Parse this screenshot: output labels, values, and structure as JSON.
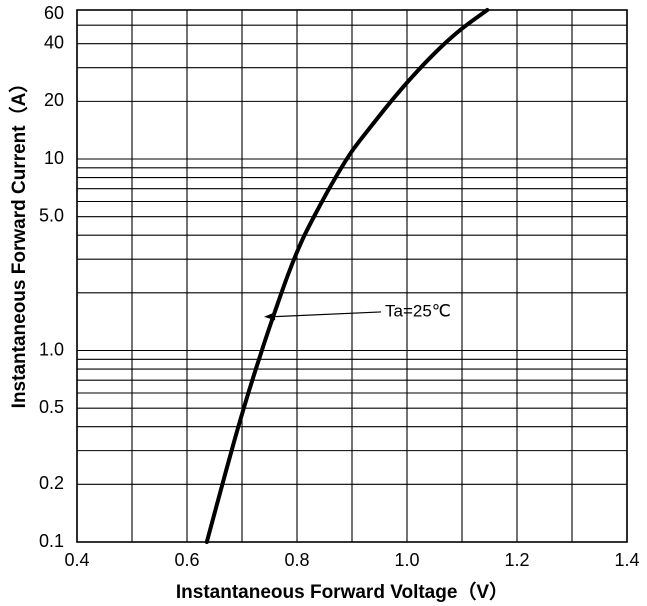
{
  "chart_data": {
    "type": "line",
    "title": "",
    "xlabel": "Instantaneous Forward Voltage（V）",
    "ylabel": "Instantaneous Forward Current（A）",
    "x_scale": "linear",
    "y_scale": "log",
    "xlim": [
      0.4,
      1.4
    ],
    "ylim": [
      0.1,
      60
    ],
    "x_ticks": [
      0.4,
      0.6,
      0.8,
      1.0,
      1.2,
      1.4
    ],
    "x_tick_labels": [
      "0.4",
      "0.6",
      "0.8",
      "1.0",
      "1.2",
      "1.4"
    ],
    "y_tick_labels": [
      {
        "value": 0.1,
        "label": "0.1"
      },
      {
        "value": 0.2,
        "label": "0.2"
      },
      {
        "value": 0.5,
        "label": "0.5"
      },
      {
        "value": 1,
        "label": "1.0"
      },
      {
        "value": 5,
        "label": "5.0"
      },
      {
        "value": 10,
        "label": "10"
      },
      {
        "value": 20,
        "label": "20"
      },
      {
        "value": 40,
        "label": "40"
      },
      {
        "value": 60,
        "label": "60"
      }
    ],
    "grid": true,
    "x_grid": [
      0.4,
      0.5,
      0.6,
      0.7,
      0.8,
      0.9,
      1.0,
      1.1,
      1.2,
      1.3,
      1.4
    ],
    "y_grid": [
      0.1,
      0.2,
      0.3,
      0.4,
      0.5,
      0.6,
      0.7,
      0.8,
      0.9,
      1,
      2,
      3,
      4,
      5,
      6,
      7,
      8,
      9,
      10,
      20,
      30,
      40,
      50,
      60
    ],
    "series": [
      {
        "x": [
          0.636,
          0.66,
          0.685,
          0.71,
          0.735,
          0.76,
          0.785,
          0.81,
          0.84,
          0.87,
          0.9,
          0.94,
          0.98,
          1.02,
          1.06,
          1.1,
          1.146
        ],
        "y": [
          0.1,
          0.18,
          0.33,
          0.58,
          0.98,
          1.6,
          2.55,
          3.8,
          5.6,
          8.0,
          11.0,
          15.5,
          21.5,
          29.0,
          38.0,
          48.0,
          60.0
        ]
      }
    ],
    "annotations": [
      {
        "text": "Ta=25℃",
        "x": 0.96,
        "y": 1.59,
        "arrow_to": {
          "x": 0.74,
          "y": 1.5
        }
      }
    ]
  }
}
